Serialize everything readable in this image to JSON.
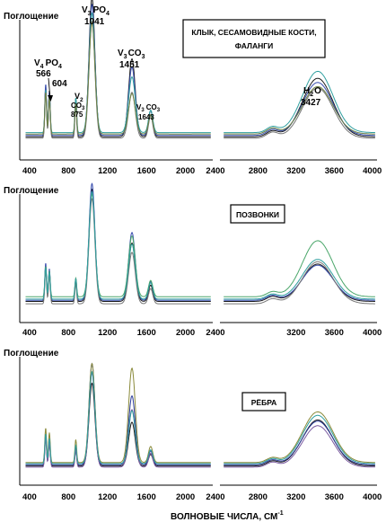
{
  "chart_data": {
    "type": "line",
    "xlabel": "ВОЛНОВЫЕ ЧИСЛА, СМ",
    "xlabel_sup": "-1",
    "ylabel": "Поглощение",
    "xlim": [
      300,
      4050
    ],
    "x_break": [
      2280,
      2400
    ],
    "grid": false,
    "x_ticks": [
      400,
      800,
      1200,
      1600,
      2000,
      2400,
      2800,
      3200,
      3600,
      4000
    ],
    "x_tick_labels_top": [
      "400",
      "800",
      "1200",
      "1600",
      "2000",
      "2400",
      "2800",
      "3200",
      "3600",
      "4000"
    ],
    "x_tick_labels_mid": [
      "400",
      "800",
      "1200",
      "1600",
      "2000",
      "2400",
      "3200",
      "3600",
      "4000"
    ],
    "x_tick_labels_bottom": [
      "400",
      "800",
      "1200",
      "1600",
      "2000",
      "2400",
      "2800",
      "3200",
      "3600",
      "4000"
    ],
    "panels": [
      {
        "legend_label": "КЛЫК, СЕСАМОВИДНЫЕ КОСТИ, ФАЛАНГИ",
        "legend_line1": "КЛЫК, СЕСАМОВИДНЫЕ КОСТИ,",
        "legend_line2": "ФАЛАНГИ",
        "annotations": {
          "v4po4_main": "V",
          "v4po4_sub": "4",
          "v4po4_tail": "PO",
          "v4po4_tail_sub": "4",
          "v4po4_num": "566",
          "v4po4_second": "604",
          "v2co3_a": "V",
          "v2co3_a_sub": "2",
          "v2co3_b": "CO",
          "v2co3_b_sub": "3",
          "v2co3_num": "875",
          "v3po4_main": "V",
          "v3po4_sub": "3",
          "v3po4_tail": "PO",
          "v3po4_tail_sub": "4",
          "v3po4_num": "1041",
          "v3co3_main": "V",
          "v3co3_sub": "3",
          "v3co3_tail": "CO",
          "v3co3_tail_sub": "3",
          "v3co3_num": "1451",
          "v3co3b_main": "V",
          "v3co3b_sub": "3",
          "v3co3b_tail": "CO",
          "v3co3b_tail_sub": "3",
          "v3co3b_num": "1643",
          "h2o_main": "H",
          "h2o_sub": "2",
          "h2o_tail": "O",
          "h2o_num": "3427"
        },
        "series": [
          {
            "color": "#1a1a1a",
            "peaks": [
              [
                566,
                0.36
              ],
              [
                604,
                0.33
              ],
              [
                875,
                0.28
              ],
              [
                1041,
                1.0
              ],
              [
                1451,
                0.56
              ],
              [
                1643,
                0.19
              ],
              [
                3427,
                0.42
              ]
            ],
            "base": 0.05
          },
          {
            "color": "#3a4fb0",
            "peaks": [
              [
                566,
                0.37
              ],
              [
                604,
                0.31
              ],
              [
                875,
                0.24
              ],
              [
                1041,
                0.94
              ],
              [
                1451,
                0.49
              ],
              [
                1643,
                0.18
              ],
              [
                3427,
                0.38
              ]
            ],
            "base": 0.06
          },
          {
            "color": "#2f9f9f",
            "peaks": [
              [
                566,
                0.31
              ],
              [
                604,
                0.27
              ],
              [
                875,
                0.25
              ],
              [
                1041,
                0.86
              ],
              [
                1451,
                0.4
              ],
              [
                1643,
                0.16
              ],
              [
                3427,
                0.44
              ]
            ],
            "base": 0.08
          },
          {
            "color": "#777777",
            "peaks": [
              [
                566,
                0.33
              ],
              [
                604,
                0.29
              ],
              [
                875,
                0.24
              ],
              [
                1041,
                0.84
              ],
              [
                1451,
                0.33
              ],
              [
                1643,
                0.16
              ],
              [
                3427,
                0.36
              ]
            ],
            "base": 0.04
          },
          {
            "color": "#6b7f45",
            "peaks": [
              [
                566,
                0.3
              ],
              [
                604,
                0.26
              ],
              [
                875,
                0.22
              ],
              [
                1041,
                0.8
              ],
              [
                1451,
                0.29
              ],
              [
                1643,
                0.14
              ],
              [
                3427,
                0.34
              ]
            ],
            "base": 0.07
          }
        ]
      },
      {
        "legend_label": "ПОЗВОНКИ",
        "series": [
          {
            "color": "#1a1a1a",
            "peaks": [
              [
                566,
                0.3
              ],
              [
                604,
                0.26
              ],
              [
                875,
                0.18
              ],
              [
                1041,
                0.96
              ],
              [
                1451,
                0.5
              ],
              [
                1643,
                0.14
              ],
              [
                3427,
                0.32
              ]
            ],
            "base": 0.05
          },
          {
            "color": "#3a4fb0",
            "peaks": [
              [
                566,
                0.32
              ],
              [
                604,
                0.27
              ],
              [
                875,
                0.19
              ],
              [
                1041,
                1.0
              ],
              [
                1451,
                0.58
              ],
              [
                1643,
                0.16
              ],
              [
                3427,
                0.3
              ]
            ],
            "base": 0.06
          },
          {
            "color": "#4aa66a",
            "peaks": [
              [
                566,
                0.26
              ],
              [
                604,
                0.22
              ],
              [
                875,
                0.16
              ],
              [
                1041,
                0.88
              ],
              [
                1451,
                0.52
              ],
              [
                1643,
                0.14
              ],
              [
                3427,
                0.48
              ]
            ],
            "base": 0.09
          },
          {
            "color": "#777777",
            "peaks": [
              [
                566,
                0.28
              ],
              [
                604,
                0.24
              ],
              [
                875,
                0.17
              ],
              [
                1041,
                0.9
              ],
              [
                1451,
                0.44
              ],
              [
                1643,
                0.13
              ],
              [
                3427,
                0.36
              ]
            ],
            "base": 0.03
          },
          {
            "color": "#2f9f9f",
            "peaks": [
              [
                566,
                0.27
              ],
              [
                604,
                0.23
              ],
              [
                875,
                0.17
              ],
              [
                1041,
                0.92
              ],
              [
                1451,
                0.47
              ],
              [
                1643,
                0.14
              ],
              [
                3427,
                0.34
              ]
            ],
            "base": 0.07
          }
        ]
      },
      {
        "legend_label": "РЁБРА",
        "series": [
          {
            "color": "#1a1a1a",
            "peaks": [
              [
                566,
                0.24
              ],
              [
                604,
                0.2
              ],
              [
                875,
                0.14
              ],
              [
                1041,
                0.72
              ],
              [
                1451,
                0.38
              ],
              [
                1643,
                0.1
              ],
              [
                3427,
                0.4
              ]
            ],
            "base": 0.05
          },
          {
            "color": "#2a3a9a",
            "peaks": [
              [
                566,
                0.27
              ],
              [
                604,
                0.22
              ],
              [
                875,
                0.16
              ],
              [
                1041,
                0.88
              ],
              [
                1451,
                0.6
              ],
              [
                1643,
                0.12
              ],
              [
                3427,
                0.38
              ]
            ],
            "base": 0.06
          },
          {
            "color": "#8a8a3a",
            "peaks": [
              [
                566,
                0.3
              ],
              [
                604,
                0.26
              ],
              [
                875,
                0.2
              ],
              [
                1041,
                0.86
              ],
              [
                1451,
                0.82
              ],
              [
                1643,
                0.14
              ],
              [
                3427,
                0.44
              ]
            ],
            "base": 0.08
          },
          {
            "color": "#7a5aa0",
            "peaks": [
              [
                566,
                0.25
              ],
              [
                604,
                0.21
              ],
              [
                875,
                0.15
              ],
              [
                1041,
                0.82
              ],
              [
                1451,
                0.5
              ],
              [
                1643,
                0.12
              ],
              [
                3427,
                0.36
              ]
            ],
            "base": 0.04
          },
          {
            "color": "#2f9f9f",
            "peaks": [
              [
                566,
                0.26
              ],
              [
                604,
                0.22
              ],
              [
                875,
                0.16
              ],
              [
                1041,
                0.8
              ],
              [
                1451,
                0.46
              ],
              [
                1643,
                0.12
              ],
              [
                3427,
                0.42
              ]
            ],
            "base": 0.07
          }
        ]
      }
    ]
  }
}
